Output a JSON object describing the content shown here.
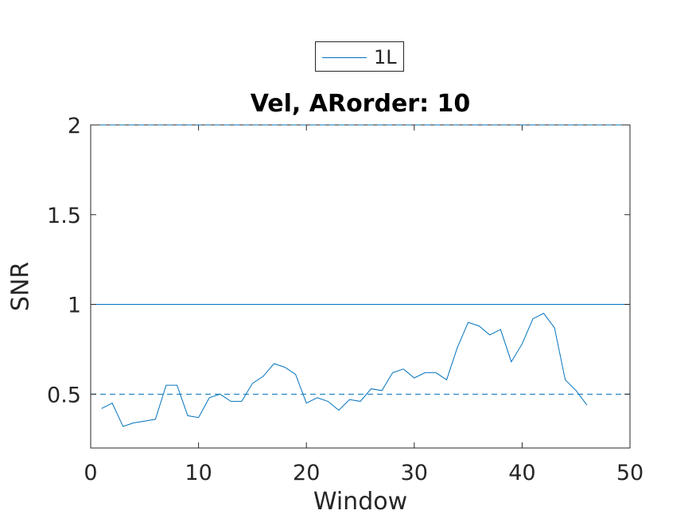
{
  "chart_data": {
    "type": "line",
    "title": "Vel, ARorder: 10",
    "xlabel": "Window",
    "ylabel": "SNR",
    "xlim": [
      0,
      50
    ],
    "ylim": [
      0.2,
      2
    ],
    "xticks": [
      0,
      10,
      20,
      30,
      40,
      50
    ],
    "xtick_labels": [
      "0",
      "10",
      "20",
      "30",
      "40",
      "50"
    ],
    "yticks": [
      0.5,
      1,
      1.5,
      2
    ],
    "ytick_labels": [
      "0.5",
      "1",
      "1.5",
      "2"
    ],
    "grid": false,
    "legend_position": "top-center-outside",
    "series": [
      {
        "name": "1L",
        "color": "#0072BD",
        "x": [
          1,
          2,
          3,
          4,
          5,
          6,
          7,
          8,
          9,
          10,
          11,
          12,
          13,
          14,
          15,
          16,
          17,
          18,
          19,
          20,
          21,
          22,
          23,
          24,
          25,
          26,
          27,
          28,
          29,
          30,
          31,
          32,
          33,
          34,
          35,
          36,
          37,
          38,
          39,
          40,
          41,
          42,
          43,
          44,
          45,
          46
        ],
        "y": [
          0.42,
          0.45,
          0.32,
          0.34,
          0.35,
          0.36,
          0.55,
          0.55,
          0.38,
          0.37,
          0.48,
          0.5,
          0.46,
          0.46,
          0.56,
          0.6,
          0.67,
          0.65,
          0.61,
          0.45,
          0.48,
          0.46,
          0.41,
          0.47,
          0.46,
          0.53,
          0.52,
          0.62,
          0.64,
          0.59,
          0.62,
          0.62,
          0.58,
          0.76,
          0.9,
          0.88,
          0.83,
          0.86,
          0.68,
          0.78,
          0.92,
          0.95,
          0.87,
          0.58,
          0.52,
          0.44
        ]
      }
    ],
    "reference_lines": [
      {
        "y": 1.0,
        "style": "solid",
        "color": "#0072BD"
      },
      {
        "y": 0.5,
        "style": "dashed",
        "color": "#0072BD"
      },
      {
        "y": 2.0,
        "style": "dashed",
        "color": "#0072BD"
      }
    ]
  }
}
